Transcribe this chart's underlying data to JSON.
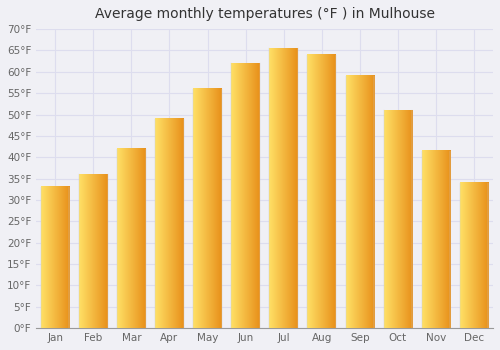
{
  "title": "Average monthly temperatures (°F ) in Mulhouse",
  "months": [
    "Jan",
    "Feb",
    "Mar",
    "Apr",
    "May",
    "Jun",
    "Jul",
    "Aug",
    "Sep",
    "Oct",
    "Nov",
    "Dec"
  ],
  "values": [
    33,
    36,
    42,
    49,
    56,
    62,
    65.5,
    64,
    59,
    51,
    41.5,
    34
  ],
  "bar_color_main": "#F5A623",
  "bar_color_light": "#FFD966",
  "background_color": "#F0F0F5",
  "plot_bg_color": "#F0F0F5",
  "grid_color": "#DDDDEE",
  "ylim": [
    0,
    70
  ],
  "yticks": [
    0,
    5,
    10,
    15,
    20,
    25,
    30,
    35,
    40,
    45,
    50,
    55,
    60,
    65,
    70
  ],
  "ytick_labels": [
    "0°F",
    "5°F",
    "10°F",
    "15°F",
    "20°F",
    "25°F",
    "30°F",
    "35°F",
    "40°F",
    "45°F",
    "50°F",
    "55°F",
    "60°F",
    "65°F",
    "70°F"
  ],
  "title_fontsize": 10,
  "tick_fontsize": 7.5,
  "font_family": "DejaVu Sans"
}
